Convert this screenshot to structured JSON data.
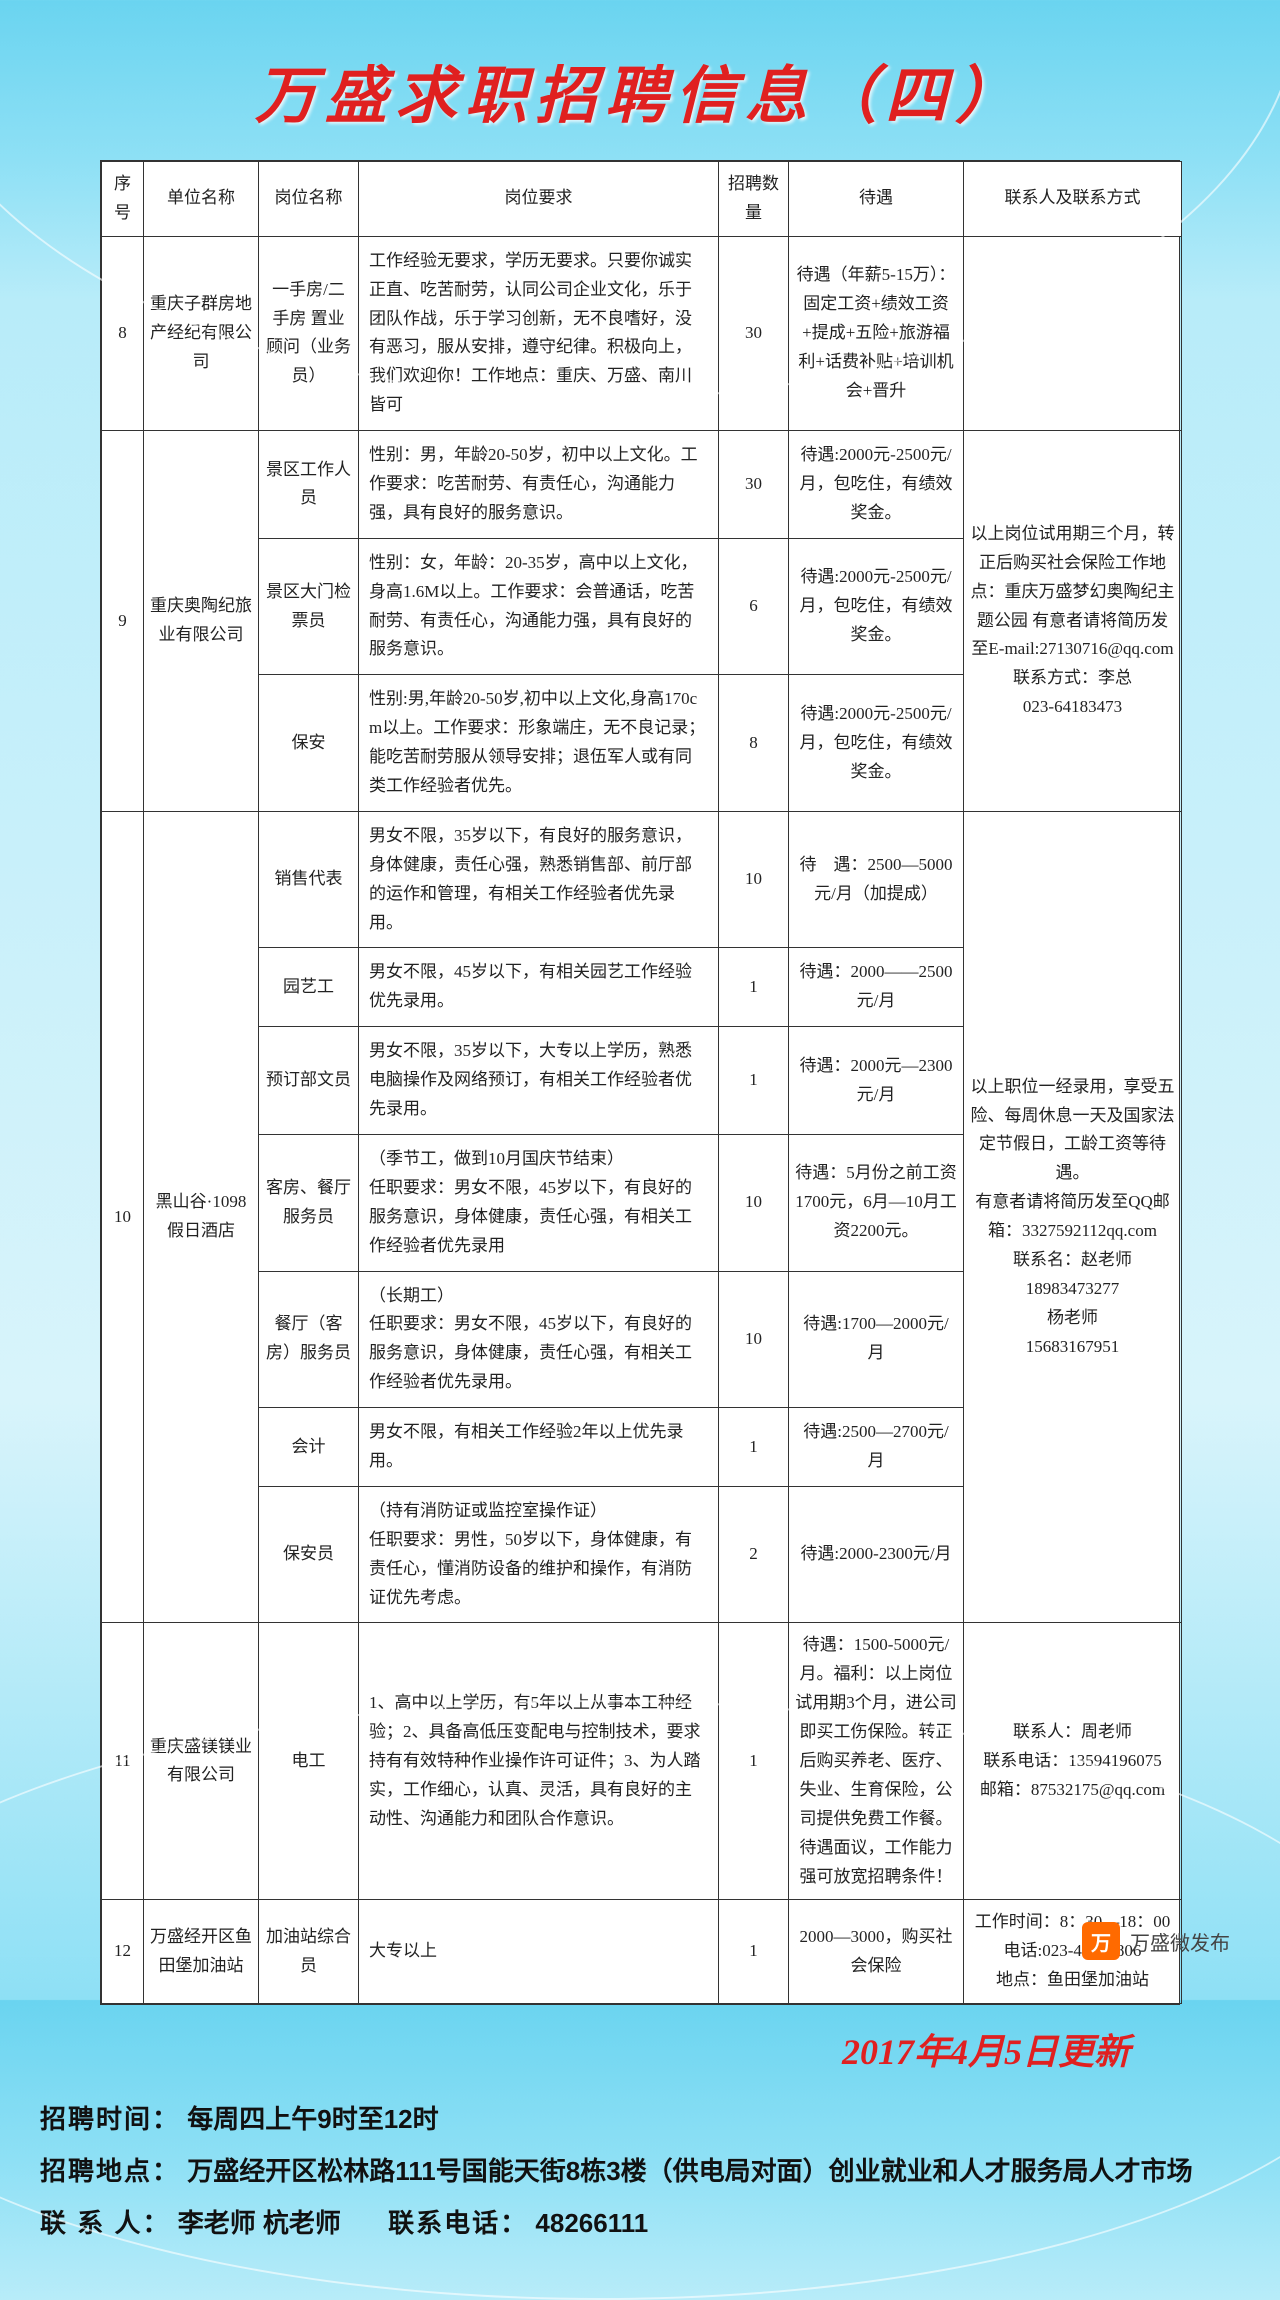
{
  "title": "万盛求职招聘信息（四）",
  "columns": [
    "序号",
    "单位名称",
    "岗位名称",
    "岗位要求",
    "招聘数量",
    "待遇",
    "联系人及联系方式"
  ],
  "rows": [
    {
      "idx": "8",
      "company": "重庆子群房地产经纪有限公司",
      "positions": [
        {
          "name": "一手房/二手房 置业顾问（业务员）",
          "req": "工作经验无要求，学历无要求。只要你诚实正直、吃苦耐劳，认同公司企业文化，乐于团队作战，乐于学习创新，无不良嗜好，没有恶习，服从安排，遵守纪律。积极向上，我们欢迎你！工作地点：重庆、万盛、南川皆可",
          "num": "30",
          "treat": "待遇（年薪5-15万）：固定工资+绩效工资+提成+五险+旅游福利+话费补贴+培训机会+晋升",
          "contact": ""
        }
      ]
    },
    {
      "idx": "9",
      "company": "重庆奥陶纪旅业有限公司",
      "contact": "以上岗位试用期三个月，转正后购买社会保险工作地点：重庆万盛梦幻奥陶纪主题公园 有意者请将简历发至E-mail:27130716@qq.com\n联系方式：李总\n023-64183473",
      "positions": [
        {
          "name": "景区工作人员",
          "req": "性别：男，年龄20-50岁，初中以上文化。工作要求：吃苦耐劳、有责任心，沟通能力强，具有良好的服务意识。",
          "num": "30",
          "treat": "待遇:2000元-2500元/月，包吃住，有绩效奖金。"
        },
        {
          "name": "景区大门检票员",
          "req": "性别：女，年龄：20-35岁，高中以上文化，身高1.6M以上。工作要求：会普通话，吃苦耐劳、有责任心，沟通能力强，具有良好的服务意识。",
          "num": "6",
          "treat": "待遇:2000元-2500元/月，包吃住，有绩效奖金。"
        },
        {
          "name": "保安",
          "req": "性别:男,年龄20-50岁,初中以上文化,身高170cm以上。工作要求：形象端庄，无不良记录；能吃苦耐劳服从领导安排；退伍军人或有同类工作经验者优先。",
          "num": "8",
          "treat": "待遇:2000元-2500元/月，包吃住，有绩效奖金。"
        }
      ]
    },
    {
      "idx": "10",
      "company": "黑山谷·1098假日酒店",
      "contact": "以上职位一经录用，享受五险、每周休息一天及国家法定节假日，工龄工资等待遇。\n有意者请将简历发至QQ邮箱：3327592112qq.com\n联系名：赵老师\n18983473277\n杨老师\n15683167951",
      "positions": [
        {
          "name": "销售代表",
          "req": "男女不限，35岁以下，有良好的服务意识，身体健康，责任心强，熟悉销售部、前厅部的运作和管理，有相关工作经验者优先录用。",
          "num": "10",
          "treat": "待　遇：2500—5000元/月（加提成）"
        },
        {
          "name": "园艺工",
          "req": "男女不限，45岁以下，有相关园艺工作经验优先录用。",
          "num": "1",
          "treat": "待遇：2000——2500元/月"
        },
        {
          "name": "预订部文员",
          "req": "男女不限，35岁以下，大专以上学历，熟悉电脑操作及网络预订，有相关工作经验者优先录用。",
          "num": "1",
          "treat": "待遇：2000元—2300元/月"
        },
        {
          "name": "客房、餐厅服务员",
          "req": "（季节工，做到10月国庆节结束）\n任职要求：男女不限，45岁以下，有良好的服务意识，身体健康，责任心强，有相关工作经验者优先录用",
          "num": "10",
          "treat": "待遇：5月份之前工资1700元，6月—10月工资2200元。"
        },
        {
          "name": "餐厅（客房）服务员",
          "req": "（长期工）\n任职要求：男女不限，45岁以下，有良好的服务意识，身体健康，责任心强，有相关工作经验者优先录用。",
          "num": "10",
          "treat": "待遇:1700—2000元/月"
        },
        {
          "name": "会计",
          "req": "男女不限，有相关工作经验2年以上优先录用。",
          "num": "1",
          "treat": "待遇:2500—2700元/月"
        },
        {
          "name": "保安员",
          "req": "（持有消防证或监控室操作证）\n任职要求：男性，50岁以下，身体健康，有责任心，懂消防设备的维护和操作，有消防证优先考虑。",
          "num": "2",
          "treat": "待遇:2000-2300元/月"
        }
      ]
    },
    {
      "idx": "11",
      "company": "重庆盛镁镁业有限公司",
      "positions": [
        {
          "name": "电工",
          "req": "1、高中以上学历，有5年以上从事本工种经验；2、具备高低压变配电与控制技术，要求持有有效特种作业操作许可证件；3、为人踏实，工作细心，认真、灵活，具有良好的主动性、沟通能力和团队合作意识。",
          "num": "1",
          "treat": "待遇：1500-5000元/月。福利：以上岗位试用期3个月，进公司即买工伤保险。转正后购买养老、医疗、失业、生育保险，公司提供免费工作餐。待遇面议，工作能力强可放宽招聘条件！",
          "contact": "联系人：周老师\n联系电话：13594196075\n邮箱：87532175@qq.com"
        }
      ]
    },
    {
      "idx": "12",
      "company": "万盛经开区鱼田堡加油站",
      "positions": [
        {
          "name": "加油站综合员",
          "req": "大专以上",
          "num": "1",
          "treat": "2000—3000，购买社会保险",
          "contact": "工作时间：8：30—18：00 电话:023-48262806\n地点：鱼田堡加油站"
        }
      ]
    }
  ],
  "update_date": "2017年4月5日更新",
  "footer": {
    "time_label": "招聘时间：",
    "time": "每周四上午9时至12时",
    "addr_label": "招聘地点：",
    "addr": "万盛经开区松林路111号国能天街8栋3楼（供电局对面）创业就业和人才服务局人才市场",
    "contact_label": "联 系 人：",
    "contact": "李老师 杭老师",
    "phone_label": "联系电话：",
    "phone": "48266111"
  },
  "wechat": "万盛微发布"
}
